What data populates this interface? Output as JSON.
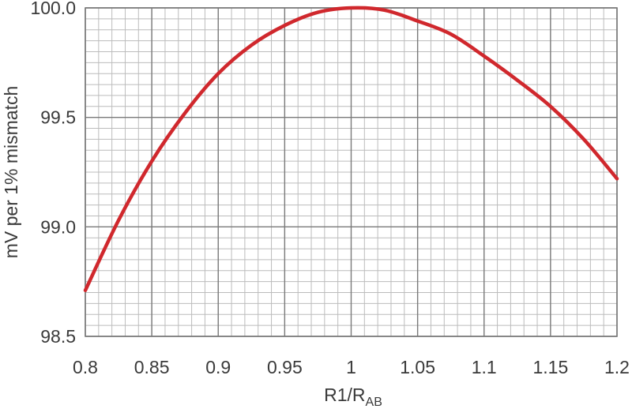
{
  "chart_data": {
    "type": "line",
    "xlabel_main": "R1/R",
    "xlabel_sub": "AB",
    "ylabel": "mV per 1% mismatch",
    "xlim": [
      0.8,
      1.2
    ],
    "ylim": [
      98.5,
      100.0
    ],
    "x_ticks": [
      0.8,
      0.85,
      0.9,
      0.95,
      1.0,
      1.05,
      1.1,
      1.15,
      1.2
    ],
    "x_tick_labels": [
      "0.8",
      "0.85",
      "0.9",
      "0.95",
      "1",
      "1.05",
      "1.1",
      "1.15",
      "1.2"
    ],
    "y_ticks": [
      98.5,
      99.0,
      99.5,
      100.0
    ],
    "y_tick_labels": [
      "98.5",
      "99.0",
      "99.5",
      "100.0"
    ],
    "grid": true,
    "series": [
      {
        "color": "#d0282d",
        "x": [
          0.8,
          0.825,
          0.85,
          0.875,
          0.9,
          0.925,
          0.95,
          0.975,
          1.0,
          1.025,
          1.05,
          1.075,
          1.1,
          1.125,
          1.15,
          1.175,
          1.2
        ],
        "y": [
          98.71,
          99.03,
          99.3,
          99.52,
          99.7,
          99.83,
          99.92,
          99.98,
          100.0,
          99.99,
          99.94,
          99.88,
          99.78,
          99.67,
          99.55,
          99.4,
          99.22
        ]
      }
    ]
  }
}
